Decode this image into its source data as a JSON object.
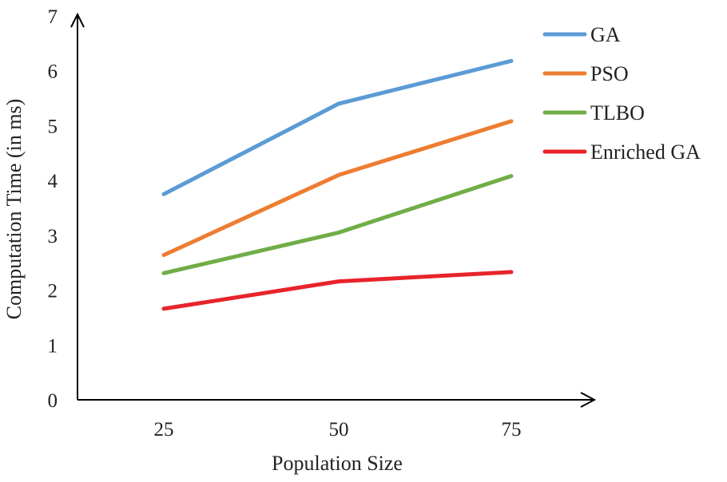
{
  "chart_data": {
    "type": "line",
    "title": "",
    "xlabel": "Population Size",
    "ylabel": "Computation Time (in ms)",
    "categories": [
      "25",
      "50",
      "75"
    ],
    "ylim": [
      0,
      7
    ],
    "yticks": [
      "0",
      "1",
      "2",
      "3",
      "4",
      "5",
      "6",
      "7"
    ],
    "legend_position": "top-right",
    "grid": false,
    "series": [
      {
        "name": "GA",
        "color": "#5B9BD5",
        "values": [
          3.75,
          5.4,
          6.18
        ]
      },
      {
        "name": "PSO",
        "color": "#ED7D31",
        "values": [
          2.64,
          4.1,
          5.08
        ]
      },
      {
        "name": "TLBO",
        "color": "#70AD47",
        "values": [
          2.31,
          3.05,
          4.08
        ]
      },
      {
        "name": "Enriched GA",
        "color": "#E8242B",
        "values": [
          1.66,
          2.16,
          2.33
        ]
      }
    ]
  }
}
